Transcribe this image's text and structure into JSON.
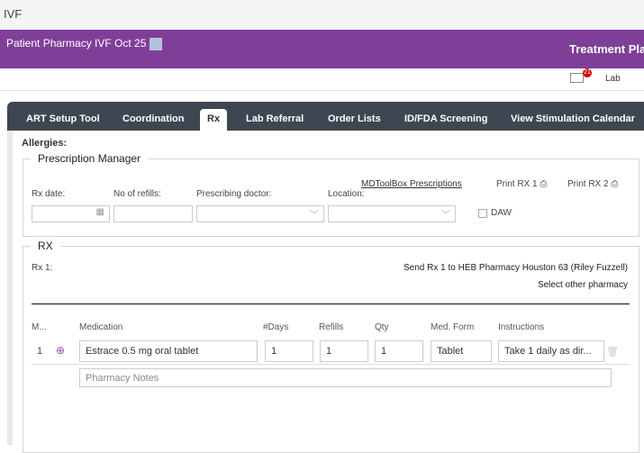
{
  "app": {
    "title": "IVF"
  },
  "header": {
    "patient": "Patient Pharmacy IVF Oct 25",
    "section": "Treatment Plan",
    "mail_badge": "21",
    "lab": "Lab",
    "brand_color": "#7f3f98"
  },
  "tabs": [
    {
      "label": "ART Setup Tool"
    },
    {
      "label": "Coordination"
    },
    {
      "label": "Rx",
      "active": true
    },
    {
      "label": "Lab Referral"
    },
    {
      "label": "Order Lists"
    },
    {
      "label": "ID/FDA Screening"
    },
    {
      "label": "View Stimulation Calendar"
    }
  ],
  "allergies": "Allergies:",
  "prescription_manager": {
    "title": "Prescription Manager",
    "mdtoolbox": "MDToolBox Prescriptions",
    "print1": "Print RX 1",
    "print2": "Print RX 2",
    "rx_date": "Rx date:",
    "refills": "No of refills:",
    "doctor": "Prescribing doctor:",
    "location": "Location:",
    "daw": "DAW"
  },
  "rx": {
    "title": "RX",
    "rx_label": "Rx 1:",
    "send": "Send Rx 1 to HEB Pharmacy Houston 63 (Riley Fuzzell)",
    "select_other": "Select other pharmacy",
    "columns": [
      "M...",
      "Medication",
      "#Days",
      "Refills",
      "Qty",
      "Med. Form",
      "Instructions"
    ],
    "rows": [
      {
        "num": "1",
        "medication": "Estrace 0.5 mg oral tablet",
        "days": "1",
        "refills": "1",
        "qty": "1",
        "form": "Tablet",
        "instructions": "Take 1 daily as dir..."
      }
    ],
    "notes_placeholder": "Pharmacy Notes"
  }
}
